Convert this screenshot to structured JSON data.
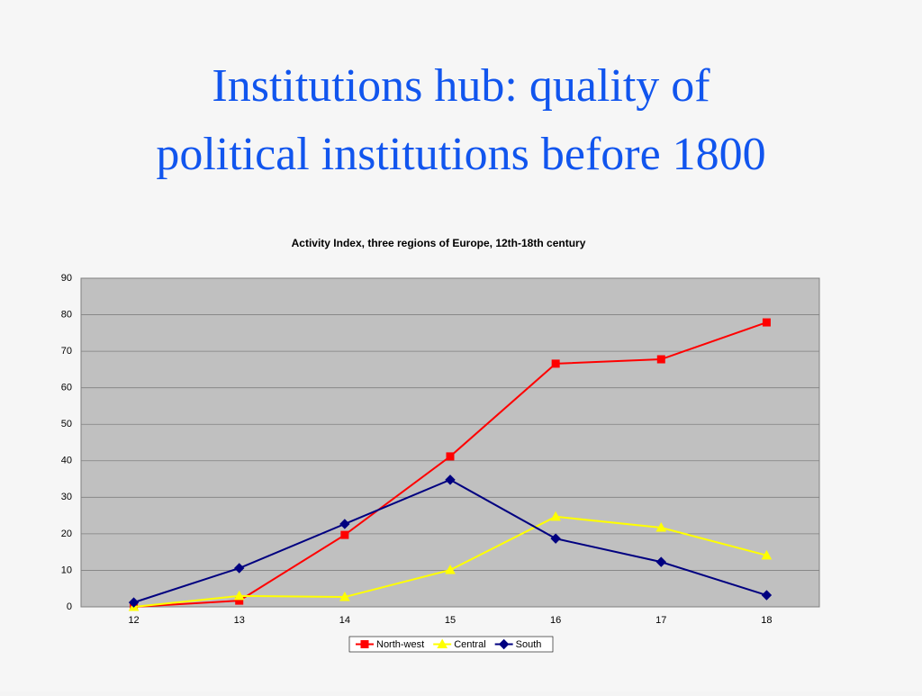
{
  "slide": {
    "title_lines": [
      "Institutions hub: quality of",
      "political institutions before 1800"
    ]
  },
  "chart_data": {
    "type": "line",
    "title": "Activity Index, three regions of Europe, 12th-18th century",
    "categories": [
      "12",
      "13",
      "14",
      "15",
      "16",
      "17",
      "18"
    ],
    "series": [
      {
        "name": "North-west",
        "color": "#ff0000",
        "marker": "square",
        "values": [
          0,
          1.7,
          19.7,
          41.2,
          66.6,
          67.8,
          77.9
        ]
      },
      {
        "name": "Central",
        "color": "#ffff00",
        "marker": "triangle",
        "values": [
          0,
          3.0,
          2.7,
          10.1,
          24.7,
          21.7,
          14.1
        ]
      },
      {
        "name": "South",
        "color": "#000080",
        "marker": "diamond",
        "values": [
          1.2,
          10.6,
          22.7,
          34.8,
          18.7,
          12.3,
          3.2
        ]
      }
    ],
    "ylim": [
      0,
      90
    ],
    "yticks": [
      0,
      10,
      20,
      30,
      40,
      50,
      60,
      70,
      80,
      90
    ],
    "grid": true,
    "legend": "bottom"
  }
}
